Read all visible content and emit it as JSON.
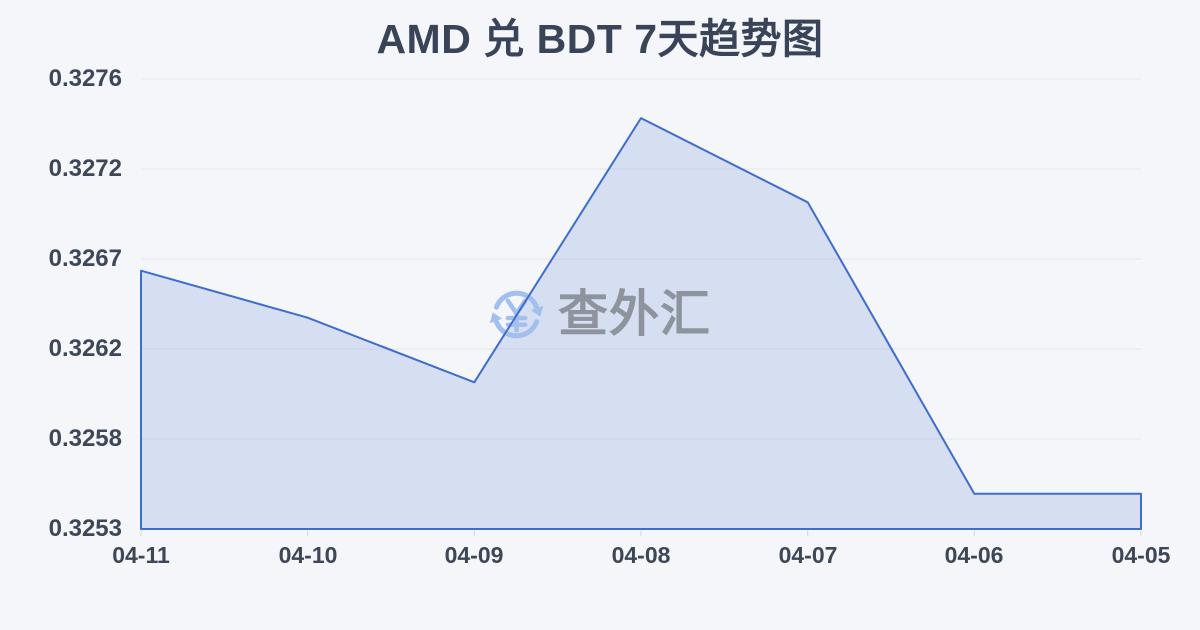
{
  "page": {
    "background": "#f4f6f9"
  },
  "watermark": {
    "icon": "currency-exchange-yuan-icon",
    "text": "查外汇"
  },
  "chart_data": {
    "type": "area",
    "title": "AMD 兑 BDT 7天趋势图",
    "xlabel": "",
    "ylabel": "",
    "categories": [
      "04-11",
      "04-10",
      "04-09",
      "04-08",
      "04-07",
      "04-06",
      "04-05"
    ],
    "values": [
      0.32664,
      0.3264,
      0.32607,
      0.32742,
      0.32699,
      0.3255,
      0.3255
    ],
    "ylim": [
      0.32532,
      0.32762
    ],
    "y_ticks": [
      {
        "label": "0.3276",
        "value": 0.32762
      },
      {
        "label": "0.3272",
        "value": 0.32716
      },
      {
        "label": "0.3267",
        "value": 0.3267
      },
      {
        "label": "0.3262",
        "value": 0.32624
      },
      {
        "label": "0.3258",
        "value": 0.32578
      },
      {
        "label": "0.3253",
        "value": 0.32532
      }
    ],
    "grid": true,
    "legend": false,
    "colors": {
      "line": "#3e6dce",
      "fill": "rgba(93,128,214,0.2)",
      "grid": "#e3e6ea",
      "axis_text": "#3d4758",
      "title_text": "#3a4459",
      "watermark_blue": "#a3c0ec",
      "watermark_gray": "#8d949d",
      "tick": "#d3d7dc",
      "background": "#f4f6f9"
    }
  }
}
